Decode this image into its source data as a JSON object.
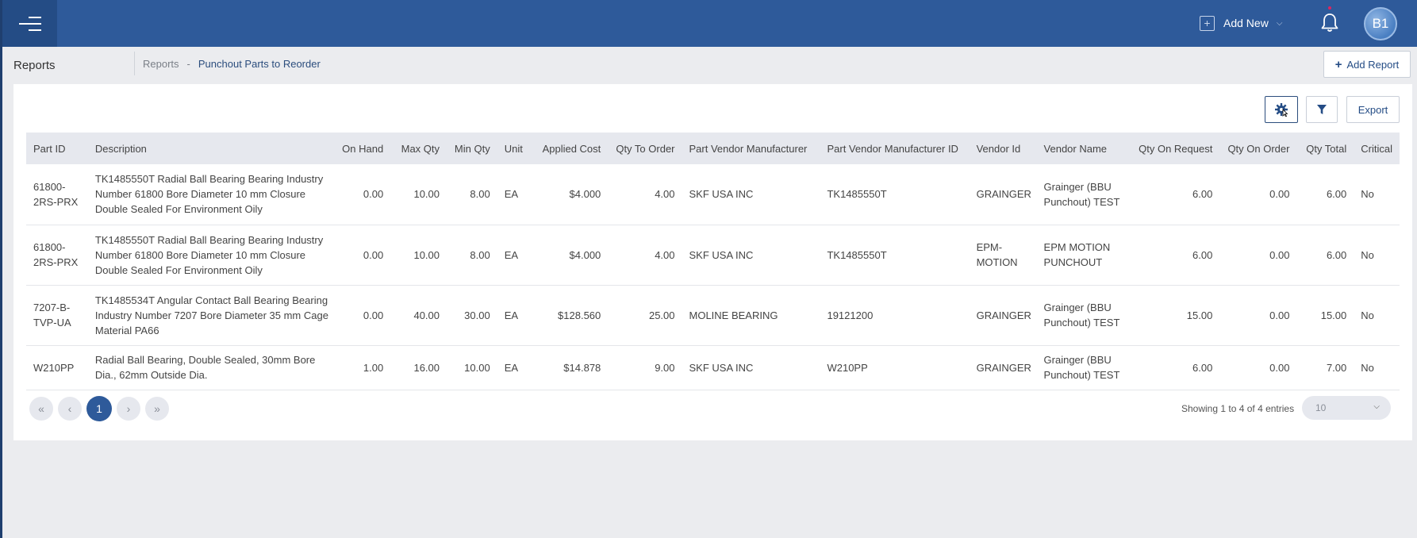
{
  "header": {
    "add_new_label": "Add New",
    "avatar_initials": "B1"
  },
  "subheader": {
    "title": "Reports",
    "breadcrumb_root": "Reports",
    "breadcrumb_sep": "-",
    "breadcrumb_current": "Punchout Parts to Reorder",
    "add_report_label": "Add Report"
  },
  "toolbar": {
    "export_label": "Export"
  },
  "table": {
    "columns": [
      "Part ID",
      "Description",
      "On Hand",
      "Max Qty",
      "Min Qty",
      "Unit",
      "Applied Cost",
      "Qty To Order",
      "Part Vendor Manufacturer",
      "Part Vendor Manufacturer ID",
      "Vendor Id",
      "Vendor Name",
      "Qty On Request",
      "Qty On Order",
      "Qty Total",
      "Critical"
    ],
    "rows": [
      {
        "part_id": "61800-\n2RS-PRX",
        "description": "TK1485550T Radial Ball Bearing Bearing Industry Number 61800 Bore Diameter 10 mm Closure Double Sealed For Environment Oily",
        "on_hand": "0.00",
        "max_qty": "10.00",
        "min_qty": "8.00",
        "unit": "EA",
        "applied_cost": "$4.000",
        "qty_to_order": "4.00",
        "manufacturer": "SKF USA INC",
        "manufacturer_id": "TK1485550T",
        "vendor_id": "GRAINGER",
        "vendor_name": "Grainger (BBU Punchout) TEST",
        "qty_on_request": "6.00",
        "qty_on_order": "0.00",
        "qty_total": "6.00",
        "critical": "No"
      },
      {
        "part_id": "61800-\n2RS-PRX",
        "description": "TK1485550T Radial Ball Bearing Bearing Industry Number 61800 Bore Diameter 10 mm Closure Double Sealed For Environment Oily",
        "on_hand": "0.00",
        "max_qty": "10.00",
        "min_qty": "8.00",
        "unit": "EA",
        "applied_cost": "$4.000",
        "qty_to_order": "4.00",
        "manufacturer": "SKF USA INC",
        "manufacturer_id": "TK1485550T",
        "vendor_id": "EPM-\nMOTION",
        "vendor_name": "EPM MOTION PUNCHOUT",
        "qty_on_request": "6.00",
        "qty_on_order": "0.00",
        "qty_total": "6.00",
        "critical": "No"
      },
      {
        "part_id": "7207-B-\nTVP-UA",
        "description": "TK1485534T Angular Contact Ball Bearing Bearing Industry Number 7207 Bore Diameter 35 mm Cage Material PA66",
        "on_hand": "0.00",
        "max_qty": "40.00",
        "min_qty": "30.00",
        "unit": "EA",
        "applied_cost": "$128.560",
        "qty_to_order": "25.00",
        "manufacturer": "MOLINE BEARING",
        "manufacturer_id": "19121200",
        "vendor_id": "GRAINGER",
        "vendor_name": "Grainger (BBU Punchout) TEST",
        "qty_on_request": "15.00",
        "qty_on_order": "0.00",
        "qty_total": "15.00",
        "critical": "No"
      },
      {
        "part_id": "W210PP",
        "description": "Radial Ball Bearing, Double Sealed, 30mm Bore Dia., 62mm Outside Dia.",
        "on_hand": "1.00",
        "max_qty": "16.00",
        "min_qty": "10.00",
        "unit": "EA",
        "applied_cost": "$14.878",
        "qty_to_order": "9.00",
        "manufacturer": "SKF USA INC",
        "manufacturer_id": "W210PP",
        "vendor_id": "GRAINGER",
        "vendor_name": "Grainger (BBU Punchout) TEST",
        "qty_on_request": "6.00",
        "qty_on_order": "0.00",
        "qty_total": "7.00",
        "critical": "No"
      }
    ]
  },
  "pager": {
    "current_page": "1",
    "showing_text": "Showing 1 to 4 of 4 entries",
    "page_size": "10"
  },
  "colors": {
    "topbar": "#2e5a9a",
    "accent": "#244c85"
  }
}
